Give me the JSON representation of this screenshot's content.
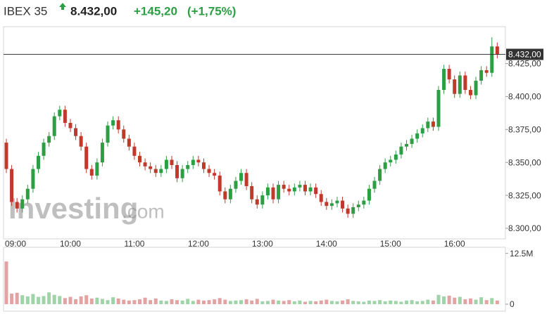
{
  "chart_data": {
    "type": "candlestick",
    "title": "IBEX 35",
    "header": {
      "price": "8.432,00",
      "change": "+145,20",
      "change_pct": "(+1,75%)"
    },
    "last_price": {
      "value": 8432,
      "label": "8.432,00"
    },
    "watermark": {
      "brand": "Investing",
      "suffix": ".com"
    },
    "up_color": "#2e9e45",
    "down_color": "#c0392b",
    "volume_up_color": "#9fd3a8",
    "volume_down_color": "#e3a3a3",
    "categories": [
      "09:00",
      null,
      null,
      null,
      null,
      null,
      null,
      null,
      null,
      null,
      null,
      null,
      "10:00",
      null,
      null,
      null,
      null,
      null,
      null,
      null,
      null,
      null,
      null,
      null,
      "11:00",
      null,
      null,
      null,
      null,
      null,
      null,
      null,
      null,
      null,
      null,
      null,
      "12:00",
      null,
      null,
      null,
      null,
      null,
      null,
      null,
      null,
      null,
      null,
      null,
      "13:00",
      null,
      null,
      null,
      null,
      null,
      null,
      null,
      null,
      null,
      null,
      null,
      "14:00",
      null,
      null,
      null,
      null,
      null,
      null,
      null,
      null,
      null,
      null,
      null,
      "15:00",
      null,
      null,
      null,
      null,
      null,
      null,
      null,
      null,
      null,
      null,
      null,
      "16:00",
      null,
      null,
      null,
      null,
      null,
      null,
      null,
      null
    ],
    "open": [
      8365,
      8345,
      8320,
      8315,
      8322,
      8330,
      8345,
      8355,
      8365,
      8370,
      8385,
      8390,
      8380,
      8376,
      8370,
      8362,
      8345,
      8340,
      8350,
      8365,
      8378,
      8382,
      8375,
      8368,
      8362,
      8355,
      8350,
      8347,
      8345,
      8342,
      8345,
      8352,
      8348,
      8338,
      8345,
      8348,
      8352,
      8350,
      8345,
      8342,
      8340,
      8328,
      8322,
      8330,
      8336,
      8342,
      8332,
      8322,
      8318,
      8325,
      8331,
      8322,
      8333,
      8330,
      8328,
      8331,
      8333,
      8328,
      8331,
      8326,
      8320,
      8317,
      8319,
      8321,
      8315,
      8311,
      8316,
      8318,
      8321,
      8330,
      8336,
      8345,
      8350,
      8352,
      8356,
      8362,
      8364,
      8368,
      8372,
      8376,
      8381,
      8377,
      8405,
      8421,
      8413,
      8402,
      8416,
      8405,
      8401,
      8412,
      8420,
      8418,
      8438
    ],
    "high": [
      8368,
      8348,
      8323,
      8325,
      8333,
      8348,
      8358,
      8368,
      8373,
      8388,
      8393,
      8393,
      8383,
      8379,
      8373,
      8365,
      8348,
      8353,
      8368,
      8381,
      8385,
      8385,
      8378,
      8371,
      8365,
      8358,
      8353,
      8350,
      8348,
      8348,
      8355,
      8355,
      8351,
      8348,
      8351,
      8355,
      8355,
      8353,
      8348,
      8345,
      8343,
      8331,
      8333,
      8339,
      8345,
      8345,
      8335,
      8325,
      8328,
      8334,
      8334,
      8336,
      8336,
      8333,
      8334,
      8336,
      8336,
      8334,
      8334,
      8329,
      8323,
      8322,
      8324,
      8324,
      8318,
      8319,
      8321,
      8324,
      8333,
      8339,
      8348,
      8353,
      8355,
      8359,
      8365,
      8367,
      8371,
      8375,
      8379,
      8384,
      8384,
      8408,
      8424,
      8424,
      8416,
      8419,
      8419,
      8408,
      8415,
      8423,
      8423,
      8445,
      8441
    ],
    "low": [
      8342,
      8317,
      8312,
      8312,
      8319,
      8327,
      8342,
      8352,
      8362,
      8367,
      8382,
      8377,
      8373,
      8367,
      8359,
      8342,
      8337,
      8337,
      8347,
      8362,
      8375,
      8372,
      8365,
      8359,
      8352,
      8347,
      8344,
      8342,
      8339,
      8339,
      8342,
      8345,
      8335,
      8335,
      8342,
      8345,
      8347,
      8342,
      8339,
      8337,
      8325,
      8319,
      8319,
      8327,
      8333,
      8329,
      8319,
      8315,
      8315,
      8322,
      8319,
      8319,
      8327,
      8325,
      8325,
      8328,
      8325,
      8325,
      8323,
      8317,
      8314,
      8314,
      8316,
      8312,
      8308,
      8308,
      8313,
      8315,
      8318,
      8327,
      8333,
      8342,
      8347,
      8349,
      8353,
      8359,
      8361,
      8365,
      8369,
      8373,
      8374,
      8374,
      8402,
      8410,
      8399,
      8399,
      8402,
      8398,
      8398,
      8409,
      8415,
      8415,
      8429
    ],
    "close": [
      8345,
      8320,
      8315,
      8322,
      8330,
      8345,
      8355,
      8365,
      8370,
      8385,
      8390,
      8380,
      8376,
      8370,
      8362,
      8345,
      8340,
      8350,
      8365,
      8378,
      8382,
      8375,
      8368,
      8362,
      8355,
      8350,
      8347,
      8345,
      8342,
      8345,
      8352,
      8348,
      8338,
      8345,
      8348,
      8352,
      8350,
      8345,
      8342,
      8340,
      8328,
      8322,
      8330,
      8336,
      8342,
      8332,
      8322,
      8318,
      8325,
      8331,
      8322,
      8333,
      8330,
      8328,
      8331,
      8333,
      8328,
      8331,
      8326,
      8320,
      8317,
      8319,
      8321,
      8315,
      8311,
      8316,
      8318,
      8321,
      8330,
      8336,
      8345,
      8350,
      8352,
      8356,
      8362,
      8364,
      8368,
      8372,
      8376,
      8381,
      8377,
      8405,
      8421,
      8413,
      8402,
      8416,
      8405,
      8401,
      8412,
      8420,
      8418,
      8438,
      8432
    ],
    "volume": [
      10500000,
      2600000,
      2800000,
      2200000,
      1900000,
      2500000,
      1800000,
      2000000,
      2900000,
      2300000,
      2000000,
      1500000,
      1800000,
      1200000,
      1900000,
      2200000,
      1400000,
      1600000,
      1300000,
      1000000,
      1700000,
      1400000,
      1100000,
      900000,
      1000000,
      1200000,
      1600000,
      1000000,
      1400000,
      900000,
      800000,
      1200000,
      1000000,
      900000,
      1300000,
      800000,
      1100000,
      900000,
      1000000,
      1200000,
      1500000,
      1100000,
      800000,
      900000,
      1000000,
      1200000,
      900000,
      1300000,
      700000,
      800000,
      1100000,
      900000,
      800000,
      1000000,
      700000,
      900000,
      600000,
      800000,
      700000,
      900000,
      1100000,
      800000,
      700000,
      900000,
      1200000,
      800000,
      700000,
      600000,
      900000,
      800000,
      1000000,
      700000,
      900000,
      800000,
      600000,
      900000,
      1000000,
      700000,
      800000,
      1100000,
      900000,
      2300000,
      1900000,
      2100000,
      1600000,
      1800000,
      1200000,
      1400000,
      1100000,
      1700000,
      1000000,
      1500000,
      900000
    ],
    "ylim": [
      8292,
      8453
    ],
    "yticks": [
      {
        "value": 8300,
        "label": "8.300,00"
      },
      {
        "value": 8325,
        "label": "8.325,00"
      },
      {
        "value": 8350,
        "label": "8.350,00"
      },
      {
        "value": 8375,
        "label": "8.375,00"
      },
      {
        "value": 8400,
        "label": "8.400,00"
      },
      {
        "value": 8425,
        "label": "8.425,00"
      }
    ],
    "vlim": [
      0,
      14000000
    ],
    "vticks": [
      {
        "value": 12500000,
        "label": "12.5M"
      },
      0
    ]
  }
}
